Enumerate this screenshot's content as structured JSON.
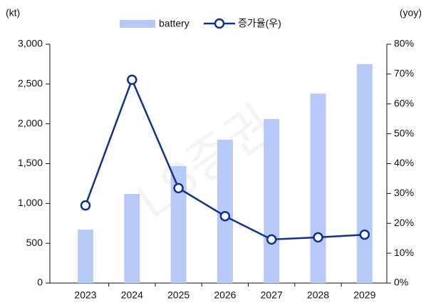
{
  "chart_data": {
    "type": "bar_line",
    "watermark": "LS증권",
    "y_label": "(kt)",
    "y2_label": "(yoy)",
    "categories": [
      "2023",
      "2024",
      "2025",
      "2026",
      "2027",
      "2028",
      "2029"
    ],
    "series": [
      {
        "name": "battery",
        "type": "bar",
        "color": "#b7c9f6",
        "axis": "y",
        "values": [
          670,
          1120,
          1470,
          1800,
          2060,
          2380,
          2750
        ]
      },
      {
        "name": "증가율(우)",
        "type": "line",
        "color": "#12318a",
        "axis": "y2",
        "values": [
          26.0,
          68.1,
          31.8,
          22.4,
          14.6,
          15.3,
          16.2
        ]
      }
    ],
    "ylim": [
      0,
      3000
    ],
    "yticks": [
      0,
      500,
      {
        "value": 1000,
        "label": "1,000"
      },
      {
        "value": 1500,
        "label": "1,500"
      },
      {
        "value": 2000,
        "label": "2,000"
      },
      {
        "value": 2500,
        "label": "2,500"
      },
      {
        "value": 3000,
        "label": "3,000"
      }
    ],
    "y2lim": [
      0,
      80
    ],
    "y2ticks": [
      {
        "value": 0,
        "label": "0%"
      },
      {
        "value": 10,
        "label": "10%"
      },
      {
        "value": 20,
        "label": "20%"
      },
      {
        "value": 30,
        "label": "30%"
      },
      {
        "value": 40,
        "label": "40%"
      },
      {
        "value": 50,
        "label": "50%"
      },
      {
        "value": 60,
        "label": "60%"
      },
      {
        "value": 70,
        "label": "70%"
      },
      {
        "value": 80,
        "label": "80%"
      }
    ],
    "legend": "top"
  }
}
